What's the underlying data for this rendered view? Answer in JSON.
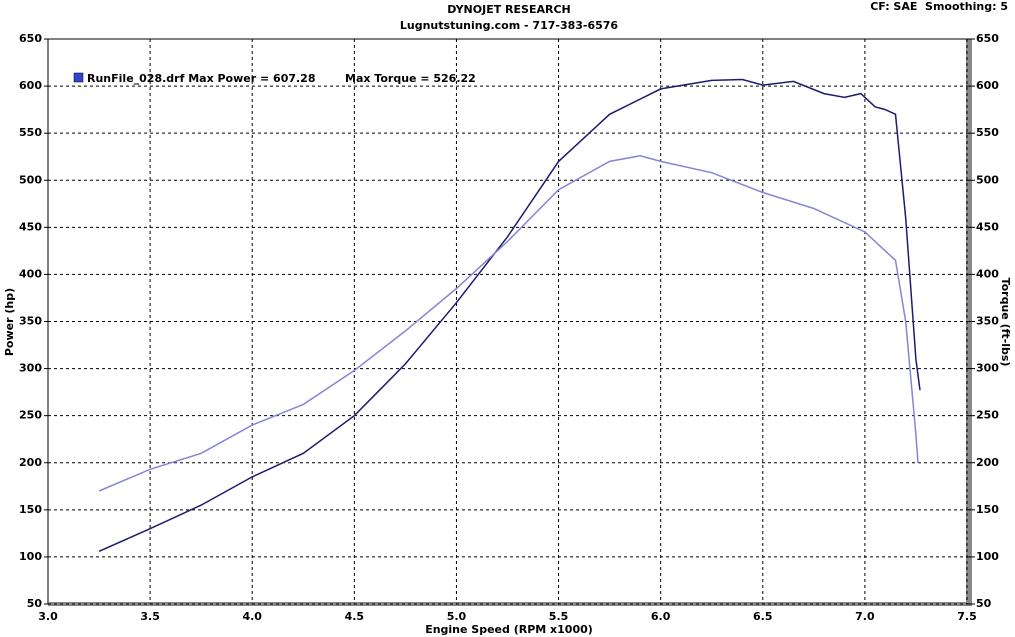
{
  "chart_data": {
    "type": "line",
    "title": "DYNOJET RESEARCH",
    "subtitle": "Lugnutstuning.com - 717-383-6576",
    "corner_note": "CF: SAE  Smoothing: 5",
    "annotations": [
      "RunFile_028.drf Max Power = 607.28",
      "Max Torque = 526.22"
    ],
    "x_label": "Engine Speed (RPM x1000)",
    "y_label": "Power (hp)",
    "y2_label": "Torque (ft-lbs)",
    "xlim": [
      3.0,
      7.5
    ],
    "xticks": [
      {
        "value": 3,
        "label": "3.0"
      },
      3.5,
      {
        "value": 4,
        "label": "4.0"
      },
      4.5,
      {
        "value": 5,
        "label": "5.0"
      },
      5.5,
      {
        "value": 6,
        "label": "6.0"
      },
      6.5,
      {
        "value": 7,
        "label": "7.0"
      },
      7.5
    ],
    "ylim": [
      50,
      650
    ],
    "yticks": [
      50,
      100,
      150,
      200,
      250,
      300,
      350,
      400,
      450,
      500,
      550,
      600,
      650
    ],
    "y2lim": [
      50,
      650
    ],
    "y2ticks": [
      50,
      100,
      150,
      200,
      250,
      300,
      350,
      400,
      450,
      500,
      550,
      600,
      650
    ],
    "grid": true,
    "legend_color": "#3344cc",
    "series": [
      {
        "color": "#1c1c70",
        "x": [
          3.25,
          3.5,
          3.75,
          4.0,
          4.25,
          4.5,
          4.75,
          5.0,
          5.25,
          5.5,
          5.75,
          6.0,
          6.25,
          6.4,
          6.5,
          6.65,
          6.8,
          6.9,
          6.98,
          7.05,
          7.1,
          7.15,
          7.2,
          7.25,
          7.27
        ],
        "values": [
          106,
          130,
          155,
          185,
          210,
          250,
          305,
          370,
          440,
          520,
          570,
          597,
          606,
          607,
          601,
          605,
          592,
          588,
          592,
          578,
          575,
          570,
          460,
          310,
          277
        ]
      },
      {
        "color": "#8585d5",
        "axis": "y2",
        "x": [
          3.25,
          3.5,
          3.75,
          4.0,
          4.25,
          4.5,
          4.75,
          5.0,
          5.25,
          5.5,
          5.75,
          5.9,
          6.0,
          6.25,
          6.5,
          6.75,
          7.0,
          7.1,
          7.15,
          7.2,
          7.25,
          7.26
        ],
        "values": [
          170,
          193,
          210,
          240,
          262,
          298,
          340,
          385,
          435,
          490,
          520,
          526,
          520,
          508,
          487,
          470,
          445,
          425,
          415,
          350,
          230,
          200
        ]
      }
    ]
  }
}
